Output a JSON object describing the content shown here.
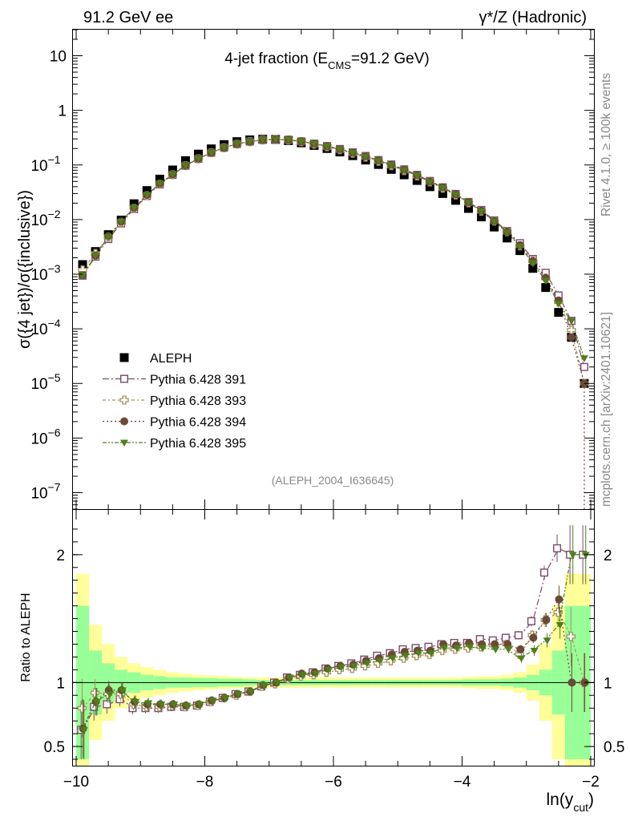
{
  "header": {
    "left": "91.2 GeV ee",
    "right_sym": "γ*/Z",
    "right": "(Hadronic)"
  },
  "side": {
    "rivet": "Rivet 4.1.0, ≥ 100k events",
    "mcplots": "mcplots.cern.ch [arXiv:2401.10621]"
  },
  "chart_data": [
    {
      "type": "scatter",
      "title": "4-jet fraction (E",
      "title_sub": "CMS",
      "title_end": "=91.2 GeV)",
      "ylabel": "σ({4 jet})/σ({inclusive})",
      "yscale": "log",
      "ylim": [
        5e-08,
        30
      ],
      "xlim": [
        -10.05,
        -1.95
      ],
      "yticks": [
        {
          "v": 1e-07,
          "m": "10",
          "e": "−7"
        },
        {
          "v": 1e-06,
          "m": "10",
          "e": "−6"
        },
        {
          "v": 1e-05,
          "m": "10",
          "e": "−5"
        },
        {
          "v": 0.0001,
          "m": "10",
          "e": "−4"
        },
        {
          "v": 0.001,
          "m": "10",
          "e": "−3"
        },
        {
          "v": 0.01,
          "m": "10",
          "e": "−2"
        },
        {
          "v": 0.1,
          "m": "10",
          "e": "−1"
        },
        {
          "v": 1,
          "m": "1",
          "e": ""
        },
        {
          "v": 10,
          "m": "10",
          "e": ""
        }
      ],
      "x": [
        -9.9,
        -9.7,
        -9.5,
        -9.3,
        -9.1,
        -8.9,
        -8.7,
        -8.5,
        -8.3,
        -8.1,
        -7.9,
        -7.7,
        -7.5,
        -7.3,
        -7.1,
        -6.9,
        -6.7,
        -6.5,
        -6.3,
        -6.1,
        -5.9,
        -5.7,
        -5.5,
        -5.3,
        -5.1,
        -4.9,
        -4.7,
        -4.5,
        -4.3,
        -4.1,
        -3.9,
        -3.7,
        -3.5,
        -3.3,
        -3.1,
        -2.9,
        -2.7,
        -2.5,
        -2.3,
        -2.1
      ],
      "data": {
        "name": "ALEPH",
        "values": [
          0.0015,
          0.0026,
          0.0053,
          0.0098,
          0.0195,
          0.034,
          0.055,
          0.081,
          0.12,
          0.158,
          0.197,
          0.236,
          0.267,
          0.288,
          0.296,
          0.294,
          0.279,
          0.254,
          0.228,
          0.2,
          0.173,
          0.148,
          0.123,
          0.102,
          0.083,
          0.066,
          0.052,
          0.04,
          0.03,
          0.0225,
          0.016,
          0.0112,
          0.0073,
          0.0046,
          0.0027,
          0.00128,
          0.00057,
          0.0002,
          7e-05,
          1e-05
        ]
      },
      "series": [
        {
          "name": "Pythia 6.428 391",
          "values": [
            0.00094,
            0.0021,
            0.0044,
            0.0085,
            0.0156,
            0.027,
            0.044,
            0.066,
            0.097,
            0.13,
            0.168,
            0.208,
            0.242,
            0.268,
            0.288,
            0.293,
            0.29,
            0.27,
            0.246,
            0.222,
            0.196,
            0.17,
            0.146,
            0.123,
            0.102,
            0.083,
            0.066,
            0.051,
            0.039,
            0.0295,
            0.021,
            0.015,
            0.0097,
            0.0062,
            0.0037,
            0.0019,
            0.00106,
            0.00041,
            0.00014,
            2e-05
          ]
        },
        {
          "name": "Pythia 6.428 393",
          "values": [
            0.0012,
            0.0024,
            0.0048,
            0.0089,
            0.0162,
            0.0275,
            0.0445,
            0.0665,
            0.097,
            0.13,
            0.168,
            0.207,
            0.241,
            0.267,
            0.287,
            0.292,
            0.287,
            0.267,
            0.241,
            0.216,
            0.19,
            0.164,
            0.139,
            0.117,
            0.097,
            0.079,
            0.063,
            0.049,
            0.0375,
            0.0283,
            0.0203,
            0.0143,
            0.0094,
            0.006,
            0.0033,
            0.00175,
            0.00085,
            0.00031,
            9.5e-05,
            1e-05
          ]
        },
        {
          "name": "Pythia 6.428 394",
          "values": [
            0.00096,
            0.0022,
            0.005,
            0.0092,
            0.0165,
            0.0283,
            0.0456,
            0.0675,
            0.098,
            0.131,
            0.169,
            0.208,
            0.243,
            0.269,
            0.289,
            0.294,
            0.29,
            0.271,
            0.246,
            0.221,
            0.195,
            0.169,
            0.144,
            0.121,
            0.101,
            0.082,
            0.065,
            0.05,
            0.039,
            0.0291,
            0.0209,
            0.0146,
            0.0095,
            0.006,
            0.0034,
            0.00173,
            0.00085,
            0.00033,
            7e-05,
            1e-05
          ]
        },
        {
          "name": "Pythia 6.428 395",
          "values": [
            0.00095,
            0.0022,
            0.0048,
            0.0092,
            0.0166,
            0.0285,
            0.0458,
            0.0676,
            0.098,
            0.131,
            0.169,
            0.208,
            0.243,
            0.269,
            0.289,
            0.294,
            0.29,
            0.27,
            0.245,
            0.219,
            0.193,
            0.167,
            0.142,
            0.119,
            0.099,
            0.08,
            0.064,
            0.049,
            0.038,
            0.0286,
            0.0205,
            0.0142,
            0.0092,
            0.0058,
            0.0032,
            0.0016,
            0.00076,
            0.00029,
            0.00014,
            2.9e-05
          ]
        }
      ],
      "legend_position": "lower-left",
      "watermark": "(ALEPH_2004_I636645)"
    },
    {
      "type": "scatter",
      "ylabel": "Ratio to ALEPH",
      "xlabel": "ln(y",
      "xlabel_sub": "cut",
      "xlabel_end": ")",
      "ylim": [
        0.35,
        2.35
      ],
      "xlim": [
        -10.05,
        -1.95
      ],
      "yticks": [
        0.5,
        1,
        2
      ],
      "xticks": [
        -10,
        -8,
        -6,
        -4,
        -2
      ],
      "xtick_labels": [
        "−10",
        "−8",
        "−6",
        "−4",
        "−2"
      ],
      "band_stat": [
        0.6,
        0.25,
        0.15,
        0.1,
        0.08,
        0.06,
        0.05,
        0.04,
        0.04,
        0.035,
        0.035,
        0.03,
        0.03,
        0.025,
        0.02,
        0.02,
        0.02,
        0.02,
        0.02,
        0.02,
        0.02,
        0.02,
        0.02,
        0.02,
        0.02,
        0.02,
        0.02,
        0.02,
        0.02,
        0.02,
        0.025,
        0.025,
        0.025,
        0.03,
        0.04,
        0.06,
        0.1,
        0.25,
        0.6,
        0.6
      ],
      "band_tot": [
        0.85,
        0.45,
        0.3,
        0.2,
        0.15,
        0.12,
        0.1,
        0.08,
        0.07,
        0.06,
        0.055,
        0.05,
        0.045,
        0.04,
        0.04,
        0.04,
        0.04,
        0.04,
        0.04,
        0.04,
        0.04,
        0.04,
        0.04,
        0.04,
        0.04,
        0.04,
        0.04,
        0.04,
        0.04,
        0.04,
        0.045,
        0.05,
        0.05,
        0.06,
        0.08,
        0.14,
        0.3,
        0.6,
        0.85,
        0.85
      ],
      "series": [
        {
          "name": "Pythia 6.428 391",
          "values": [
            0.63,
            0.81,
            0.83,
            0.87,
            0.8,
            0.8,
            0.8,
            0.81,
            0.81,
            0.82,
            0.85,
            0.88,
            0.91,
            0.93,
            0.97,
            1.0,
            1.04,
            1.06,
            1.08,
            1.11,
            1.13,
            1.15,
            1.18,
            1.21,
            1.23,
            1.26,
            1.27,
            1.28,
            1.3,
            1.31,
            1.31,
            1.34,
            1.33,
            1.35,
            1.37,
            1.48,
            1.86,
            2.05,
            2.0,
            2.0
          ]
        },
        {
          "name": "Pythia 6.428 393",
          "values": [
            0.8,
            0.92,
            0.91,
            0.91,
            0.83,
            0.81,
            0.81,
            0.82,
            0.81,
            0.82,
            0.85,
            0.88,
            0.9,
            0.93,
            0.97,
            0.99,
            1.03,
            1.05,
            1.06,
            1.08,
            1.1,
            1.11,
            1.13,
            1.15,
            1.17,
            1.19,
            1.21,
            1.22,
            1.25,
            1.26,
            1.27,
            1.28,
            1.29,
            1.3,
            1.22,
            1.37,
            1.49,
            1.55,
            1.36,
            1.0
          ]
        },
        {
          "name": "Pythia 6.428 394",
          "values": [
            0.64,
            0.85,
            0.94,
            0.94,
            0.85,
            0.83,
            0.83,
            0.83,
            0.82,
            0.83,
            0.86,
            0.88,
            0.91,
            0.93,
            0.98,
            1.0,
            1.04,
            1.07,
            1.08,
            1.11,
            1.13,
            1.14,
            1.17,
            1.19,
            1.22,
            1.24,
            1.25,
            1.25,
            1.3,
            1.29,
            1.31,
            1.3,
            1.3,
            1.3,
            1.26,
            1.35,
            1.49,
            1.65,
            1.0,
            1.0
          ]
        },
        {
          "name": "Pythia 6.428 395",
          "values": [
            0.63,
            0.85,
            0.91,
            0.94,
            0.85,
            0.84,
            0.83,
            0.83,
            0.82,
            0.83,
            0.86,
            0.88,
            0.91,
            0.93,
            0.98,
            1.0,
            1.04,
            1.06,
            1.07,
            1.1,
            1.12,
            1.13,
            1.15,
            1.17,
            1.19,
            1.21,
            1.23,
            1.23,
            1.27,
            1.27,
            1.28,
            1.27,
            1.26,
            1.26,
            1.19,
            1.25,
            1.33,
            1.45,
            2.0,
            2.0
          ]
        }
      ]
    }
  ],
  "legend": {
    "entries": [
      "ALEPH",
      "Pythia 6.428 391",
      "Pythia 6.428 393",
      "Pythia 6.428 394",
      "Pythia 6.428 395"
    ]
  },
  "styles": {
    "colors": {
      "data": "#000000",
      "s391": "#7a4a6a",
      "s393": "#a5915a",
      "s394": "#6a4a35",
      "s395": "#4f7f1a",
      "band_stat": "#98ff98",
      "band_tot": "#fffe98"
    }
  }
}
